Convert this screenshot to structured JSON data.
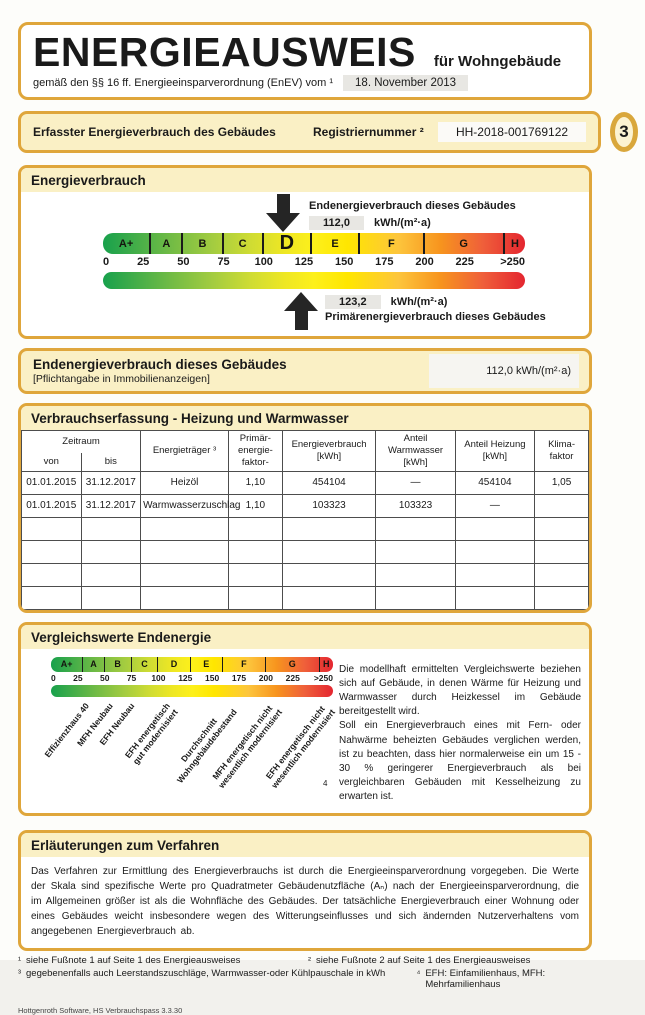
{
  "header": {
    "title": "ENERGIEAUSWEIS",
    "subtitle": "für Wohngebäude",
    "regulation": "gemäß den §§ 16 ff. Energieeinsparverordnung (EnEV) vom ¹",
    "date": "18. November 2013"
  },
  "registration": {
    "label": "Erfasster Energieverbrauch des Gebäudes",
    "number_label": "Registriernummer ²",
    "number": "HH-2018-001769122",
    "page_number": "3"
  },
  "energy_scale": {
    "classes": [
      "A+",
      "A",
      "B",
      "C",
      "D",
      "E",
      "F",
      "G",
      "H"
    ],
    "boundaries": [
      0,
      30,
      50,
      75,
      100,
      130,
      160,
      200,
      250,
      262.5
    ],
    "tick_labels": [
      "0",
      "25",
      "50",
      "75",
      "100",
      "125",
      "150",
      "175",
      "200",
      "225",
      ">250"
    ],
    "tick_values": [
      0,
      25,
      50,
      75,
      100,
      125,
      150,
      175,
      200,
      225,
      250
    ],
    "max": 262.5
  },
  "consumption_section": {
    "title": "Energieverbrauch",
    "current_class": "D",
    "end_energy_label": "Endenergieverbrauch dieses Gebäudes",
    "end_energy_value": "112,0",
    "end_energy_unit": "kWh/(m²·a)",
    "end_energy_marker": 112.0,
    "primary_energy_value": "123,2",
    "primary_energy_unit": "kWh/(m²·a)",
    "primary_energy_label": "Primärenergieverbrauch dieses Gebäudes",
    "primary_energy_marker": 123.2
  },
  "end_energy_section": {
    "title": "Endenergieverbrauch dieses Gebäudes",
    "subtitle": "[Pflichtangabe in Immobilienanzeigen]",
    "value": "112,0 kWh/(m²·a)"
  },
  "table_section": {
    "title": "Verbrauchserfassung - Heizung und Warmwasser",
    "columns": {
      "zeitraum": "Zeitraum",
      "von": "von",
      "bis": "bis",
      "energietraeger": "Energieträger ³",
      "pef": "Primär-\nenergie-\nfaktor-",
      "verbrauch": "Energieverbrauch\n[kWh]",
      "anteil_ww": "Anteil\nWarmwasser\n[kWh]",
      "anteil_hz": "Anteil Heizung\n[kWh]",
      "klima": "Klima-\nfaktor"
    },
    "rows": [
      [
        "01.01.2015",
        "31.12.2017",
        "Heizöl",
        "1,10",
        "454104",
        "—",
        "454104",
        "1,05"
      ],
      [
        "01.01.2015",
        "31.12.2017",
        "Warmwasserzuschlag",
        "1,10",
        "103323",
        "103323",
        "—",
        ""
      ],
      [
        "",
        "",
        "",
        "",
        "",
        "",
        "",
        ""
      ],
      [
        "",
        "",
        "",
        "",
        "",
        "",
        "",
        ""
      ],
      [
        "",
        "",
        "",
        "",
        "",
        "",
        "",
        ""
      ],
      [
        "",
        "",
        "",
        "",
        "",
        "",
        "",
        ""
      ]
    ]
  },
  "comparison_section": {
    "title": "Vergleichswerte Endenergie",
    "footnote_marker": "4",
    "reference_labels": [
      {
        "text": "Effizienzhaus 40",
        "value": 30
      },
      {
        "text": "MFH Neubau",
        "value": 52
      },
      {
        "text": "EFH Neubau",
        "value": 72
      },
      {
        "text": "EFH energetisch\ngut modernisiert",
        "value": 105
      },
      {
        "text": "Durchschnitt\nWohngebäudebestand",
        "value": 160
      },
      {
        "text": "MFH energetisch nicht\nwesentlich modernisiert",
        "value": 202
      },
      {
        "text": "EFH energetisch nicht\nwesentlich modernisiert",
        "value": 252
      }
    ],
    "paragraphs": [
      "Die modellhaft ermittelten Vergleichswerte beziehen sich auf Gebäude, in denen Wärme für Heizung und Warmwasser durch Heizkessel im Gebäude bereitgestellt wird.",
      "Soll ein Energieverbrauch eines mit Fern- oder Nahwärme beheizten Gebäudes verglichen werden, ist zu beachten, dass hier normalerweise ein um 15 - 30 % geringerer Energieverbrauch als bei vergleichbaren Gebäuden mit Kesselheizung zu erwarten ist."
    ]
  },
  "explanation_section": {
    "title": "Erläuterungen zum Verfahren",
    "text": "Das Verfahren zur Ermittlung des Energieverbrauchs ist durch die Energieeinsparverordnung vorgegeben. Die Werte der Skala sind spezifische Werte pro Quadratmeter Gebäudenutzfläche (Aₙ) nach der Energieeinsparverordnung, die im Allgemeinen größer ist als die Wohnfläche des Gebäudes. Der tatsächliche Energieverbrauch einer Wohnung oder eines Gebäudes weicht insbesondere wegen des Witterungseinflusses und sich ändernden Nutzerverhaltens vom angegebenen Energieverbrauch ab."
  },
  "footnotes": [
    {
      "marker": "¹",
      "text": "siehe Fußnote 1 auf Seite 1 des Energieausweises"
    },
    {
      "marker": "²",
      "text": "siehe Fußnote 2 auf Seite 1 des Energieausweises"
    },
    {
      "marker": "³",
      "text": "gegebenenfalls auch Leerstandszuschläge, Warmwasser-oder Kühlpauschale in kWh"
    },
    {
      "marker": "⁴",
      "text": "EFH: Einfamilienhaus, MFH: Mehrfamilienhaus"
    }
  ],
  "footer": "Hottgenroth Software, HS Verbrauchspass 3.3.30",
  "colors": {
    "accent_gold": "#dfa63b",
    "panel_yellow": "#faf0c5",
    "value_box_gray": "#e8e7e3",
    "scale_gradient": [
      "#18a14c",
      "#71bb45",
      "#cfdc33",
      "#ffe600",
      "#f7941e",
      "#e42630"
    ]
  }
}
